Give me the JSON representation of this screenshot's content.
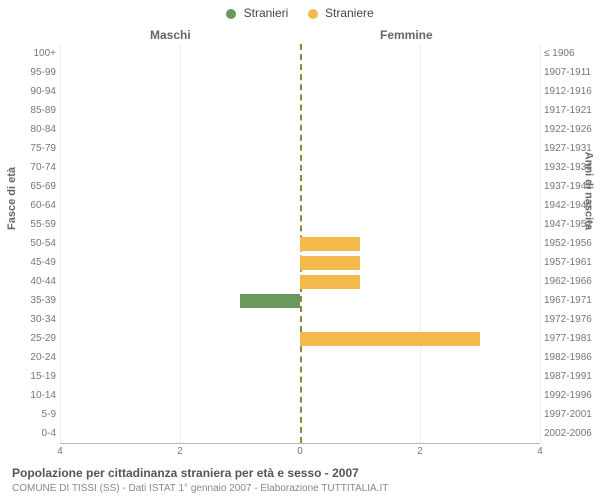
{
  "chart": {
    "type": "population-pyramid",
    "legend": [
      {
        "label": "Stranieri",
        "color": "#6a9a5b"
      },
      {
        "label": "Straniere",
        "color": "#f3b94a"
      }
    ],
    "column_titles": {
      "left": "Maschi",
      "right": "Femmine"
    },
    "y_axis_label_left": "Fasce di età",
    "y_axis_label_right": "Anni di nascita",
    "x_axis": {
      "max": 4,
      "ticks_left": [
        4,
        2,
        0
      ],
      "ticks_right": [
        0,
        2,
        4
      ]
    },
    "colors": {
      "male_bar": "#6a9a5b",
      "female_bar": "#f3b94a",
      "background": "#ffffff",
      "grid": "#eeeeee",
      "axis": "#bbbbbb",
      "center_line": "#8a8a3a",
      "text": "#666666"
    },
    "rows": [
      {
        "age": "100+",
        "birth": "≤ 1906",
        "m": 0,
        "f": 0
      },
      {
        "age": "95-99",
        "birth": "1907-1911",
        "m": 0,
        "f": 0
      },
      {
        "age": "90-94",
        "birth": "1912-1916",
        "m": 0,
        "f": 0
      },
      {
        "age": "85-89",
        "birth": "1917-1921",
        "m": 0,
        "f": 0
      },
      {
        "age": "80-84",
        "birth": "1922-1926",
        "m": 0,
        "f": 0
      },
      {
        "age": "75-79",
        "birth": "1927-1931",
        "m": 0,
        "f": 0
      },
      {
        "age": "70-74",
        "birth": "1932-1936",
        "m": 0,
        "f": 0
      },
      {
        "age": "65-69",
        "birth": "1937-1941",
        "m": 0,
        "f": 0
      },
      {
        "age": "60-64",
        "birth": "1942-1946",
        "m": 0,
        "f": 0
      },
      {
        "age": "55-59",
        "birth": "1947-1951",
        "m": 0,
        "f": 0
      },
      {
        "age": "50-54",
        "birth": "1952-1956",
        "m": 0,
        "f": 1
      },
      {
        "age": "45-49",
        "birth": "1957-1961",
        "m": 0,
        "f": 1
      },
      {
        "age": "40-44",
        "birth": "1962-1966",
        "m": 0,
        "f": 1
      },
      {
        "age": "35-39",
        "birth": "1967-1971",
        "m": 1,
        "f": 0
      },
      {
        "age": "30-34",
        "birth": "1972-1976",
        "m": 0,
        "f": 0
      },
      {
        "age": "25-29",
        "birth": "1977-1981",
        "m": 0,
        "f": 3
      },
      {
        "age": "20-24",
        "birth": "1982-1986",
        "m": 0,
        "f": 0
      },
      {
        "age": "15-19",
        "birth": "1987-1991",
        "m": 0,
        "f": 0
      },
      {
        "age": "10-14",
        "birth": "1992-1996",
        "m": 0,
        "f": 0
      },
      {
        "age": "5-9",
        "birth": "1997-2001",
        "m": 0,
        "f": 0
      },
      {
        "age": "0-4",
        "birth": "2002-2006",
        "m": 0,
        "f": 0
      }
    ],
    "title": "Popolazione per cittadinanza straniera per età e sesso - 2007",
    "subtitle": "COMUNE DI TISSI (SS) - Dati ISTAT 1° gennaio 2007 - Elaborazione TUTTITALIA.IT"
  }
}
